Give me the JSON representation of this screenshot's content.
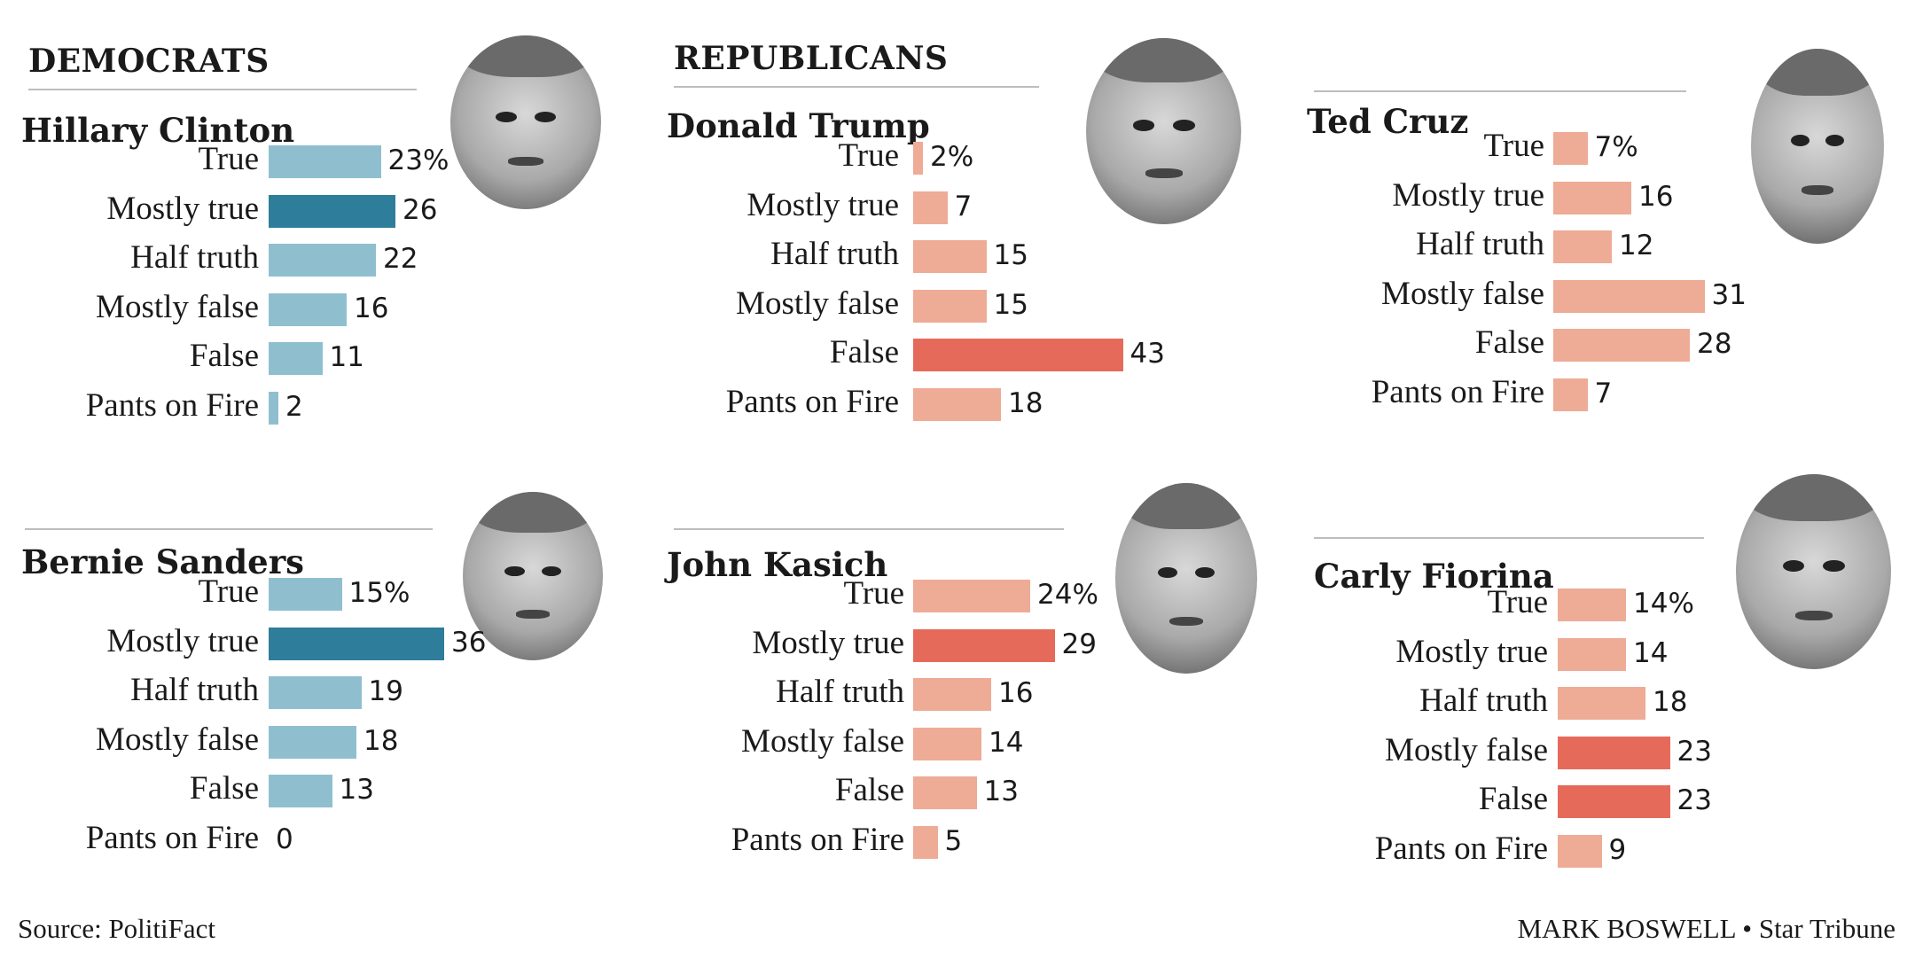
{
  "headers": {
    "democrats": "DEMOCRATS",
    "republicans": "REPUBLICANS"
  },
  "colors": {
    "dem_light": "#8fbfcf",
    "dem_dark": "#2e7d9a",
    "rep_light": "#eeab96",
    "rep_dark": "#e56a5a"
  },
  "footer": {
    "source": "Source: PolitiFact",
    "credit": "MARK BOSWELL • Star Tribune"
  },
  "chart_data": [
    {
      "type": "bar",
      "title": "Hillary Clinton",
      "party": "democrat",
      "categories": [
        "True",
        "Mostly true",
        "Half truth",
        "Mostly false",
        "False",
        "Pants on Fire"
      ],
      "values": [
        23,
        26,
        22,
        16,
        11,
        2
      ],
      "labels": [
        "23%",
        "26",
        "22",
        "16",
        "11",
        "2"
      ],
      "highlight": [
        1
      ]
    },
    {
      "type": "bar",
      "title": "Bernie Sanders",
      "party": "democrat",
      "categories": [
        "True",
        "Mostly true",
        "Half truth",
        "Mostly false",
        "False",
        "Pants on Fire"
      ],
      "values": [
        15,
        36,
        19,
        18,
        13,
        0
      ],
      "labels": [
        "15%",
        "36",
        "19",
        "18",
        "13",
        "0"
      ],
      "highlight": [
        1
      ]
    },
    {
      "type": "bar",
      "title": "Donald Trump",
      "party": "republican",
      "categories": [
        "True",
        "Mostly true",
        "Half truth",
        "Mostly false",
        "False",
        "Pants on Fire"
      ],
      "values": [
        2,
        7,
        15,
        15,
        43,
        18
      ],
      "labels": [
        "2%",
        "7",
        "15",
        "15",
        "43",
        "18"
      ],
      "highlight": [
        4
      ]
    },
    {
      "type": "bar",
      "title": "John Kasich",
      "party": "republican",
      "categories": [
        "True",
        "Mostly true",
        "Half truth",
        "Mostly false",
        "False",
        "Pants on Fire"
      ],
      "values": [
        24,
        29,
        16,
        14,
        13,
        5
      ],
      "labels": [
        "24%",
        "29",
        "16",
        "14",
        "13",
        "5"
      ],
      "highlight": [
        1
      ]
    },
    {
      "type": "bar",
      "title": "Ted Cruz",
      "party": "republican",
      "categories": [
        "True",
        "Mostly true",
        "Half truth",
        "Mostly false",
        "False",
        "Pants on Fire"
      ],
      "values": [
        7,
        16,
        12,
        31,
        28,
        7
      ],
      "labels": [
        "7%",
        "16",
        "12",
        "31",
        "28",
        "7"
      ],
      "highlight": []
    },
    {
      "type": "bar",
      "title": "Carly Fiorina",
      "party": "republican",
      "categories": [
        "True",
        "Mostly true",
        "Half truth",
        "Mostly false",
        "False",
        "Pants on Fire"
      ],
      "values": [
        14,
        14,
        18,
        23,
        23,
        9
      ],
      "labels": [
        "14%",
        "14",
        "18",
        "23",
        "23",
        "9"
      ],
      "highlight": [
        3,
        4
      ]
    }
  ]
}
